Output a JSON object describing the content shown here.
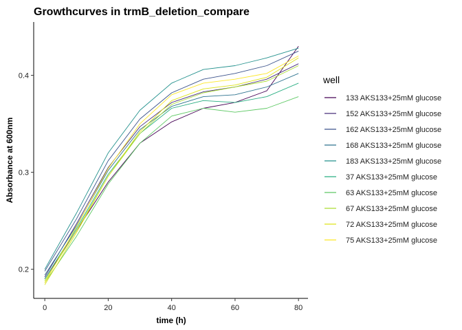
{
  "chart_data": {
    "type": "line",
    "title": "Growthcurves in trmB_deletion_compare",
    "xlabel": "time (h)",
    "ylabel": "Absorbance at 600nm",
    "xlim": [
      -3.5,
      83
    ],
    "ylim": [
      0.17,
      0.455
    ],
    "xticks": [
      0,
      20,
      40,
      60,
      80
    ],
    "yticks": [
      0.2,
      0.3,
      0.4
    ],
    "xtick_labels": [
      "0",
      "20",
      "40",
      "60",
      "80"
    ],
    "ytick_labels": [
      "0.2",
      "0.3",
      "0.4"
    ],
    "grid": false,
    "legend_title": "well",
    "legend_position": "right",
    "series": [
      {
        "name": "133 AKS133+25mM glucose",
        "color": "#440154",
        "x": [
          0,
          10,
          20,
          30,
          40,
          50,
          60,
          70,
          80
        ],
        "y": [
          0.19,
          0.24,
          0.29,
          0.33,
          0.352,
          0.366,
          0.372,
          0.384,
          0.43
        ]
      },
      {
        "name": "152 AKS133+25mM glucose",
        "color": "#472D7B",
        "x": [
          0,
          10,
          20,
          30,
          40,
          50,
          60,
          70,
          80
        ],
        "y": [
          0.192,
          0.247,
          0.305,
          0.347,
          0.372,
          0.383,
          0.388,
          0.396,
          0.412
        ]
      },
      {
        "name": "162 AKS133+25mM glucose",
        "color": "#3B528B",
        "x": [
          0,
          10,
          20,
          30,
          40,
          50,
          60,
          70,
          80
        ],
        "y": [
          0.198,
          0.252,
          0.312,
          0.355,
          0.382,
          0.396,
          0.402,
          0.41,
          0.425
        ]
      },
      {
        "name": "168 AKS133+25mM glucose",
        "color": "#2C728E",
        "x": [
          0,
          10,
          20,
          30,
          40,
          50,
          60,
          70,
          80
        ],
        "y": [
          0.194,
          0.245,
          0.302,
          0.344,
          0.368,
          0.378,
          0.38,
          0.388,
          0.402
        ]
      },
      {
        "name": "183 AKS133+25mM glucose",
        "color": "#21908C",
        "x": [
          0,
          10,
          20,
          30,
          40,
          50,
          60,
          70,
          80
        ],
        "y": [
          0.2,
          0.258,
          0.32,
          0.364,
          0.392,
          0.406,
          0.41,
          0.418,
          0.428
        ]
      },
      {
        "name": "37 AKS133+25mM glucose",
        "color": "#27AD81",
        "x": [
          0,
          10,
          20,
          30,
          40,
          50,
          60,
          70,
          80
        ],
        "y": [
          0.19,
          0.242,
          0.298,
          0.34,
          0.366,
          0.374,
          0.372,
          0.378,
          0.392
        ]
      },
      {
        "name": "63 AKS133+25mM glucose",
        "color": "#5DC863",
        "x": [
          0,
          10,
          20,
          30,
          40,
          50,
          60,
          70,
          80
        ],
        "y": [
          0.186,
          0.234,
          0.288,
          0.33,
          0.358,
          0.366,
          0.362,
          0.366,
          0.378
        ]
      },
      {
        "name": "67 AKS133+25mM glucose",
        "color": "#AADC32",
        "x": [
          0,
          10,
          20,
          30,
          40,
          50,
          60,
          70,
          80
        ],
        "y": [
          0.188,
          0.24,
          0.296,
          0.34,
          0.37,
          0.382,
          0.388,
          0.394,
          0.41
        ]
      },
      {
        "name": "72 AKS133+25mM glucose",
        "color": "#DDE318",
        "x": [
          0,
          10,
          20,
          30,
          40,
          50,
          60,
          70,
          80
        ],
        "y": [
          0.184,
          0.238,
          0.296,
          0.342,
          0.374,
          0.386,
          0.39,
          0.398,
          0.418
        ]
      },
      {
        "name": "75 AKS133+25mM glucose",
        "color": "#FDE725",
        "x": [
          0,
          10,
          20,
          30,
          40,
          50,
          60,
          70,
          80
        ],
        "y": [
          0.186,
          0.244,
          0.304,
          0.35,
          0.38,
          0.392,
          0.396,
          0.402,
          0.42
        ]
      }
    ]
  }
}
